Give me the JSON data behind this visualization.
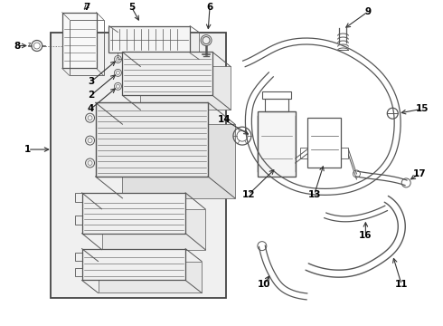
{
  "bg_color": "#ffffff",
  "line_color": "#555555",
  "dark_color": "#333333",
  "figsize": [
    4.9,
    3.6
  ],
  "dpi": 100
}
